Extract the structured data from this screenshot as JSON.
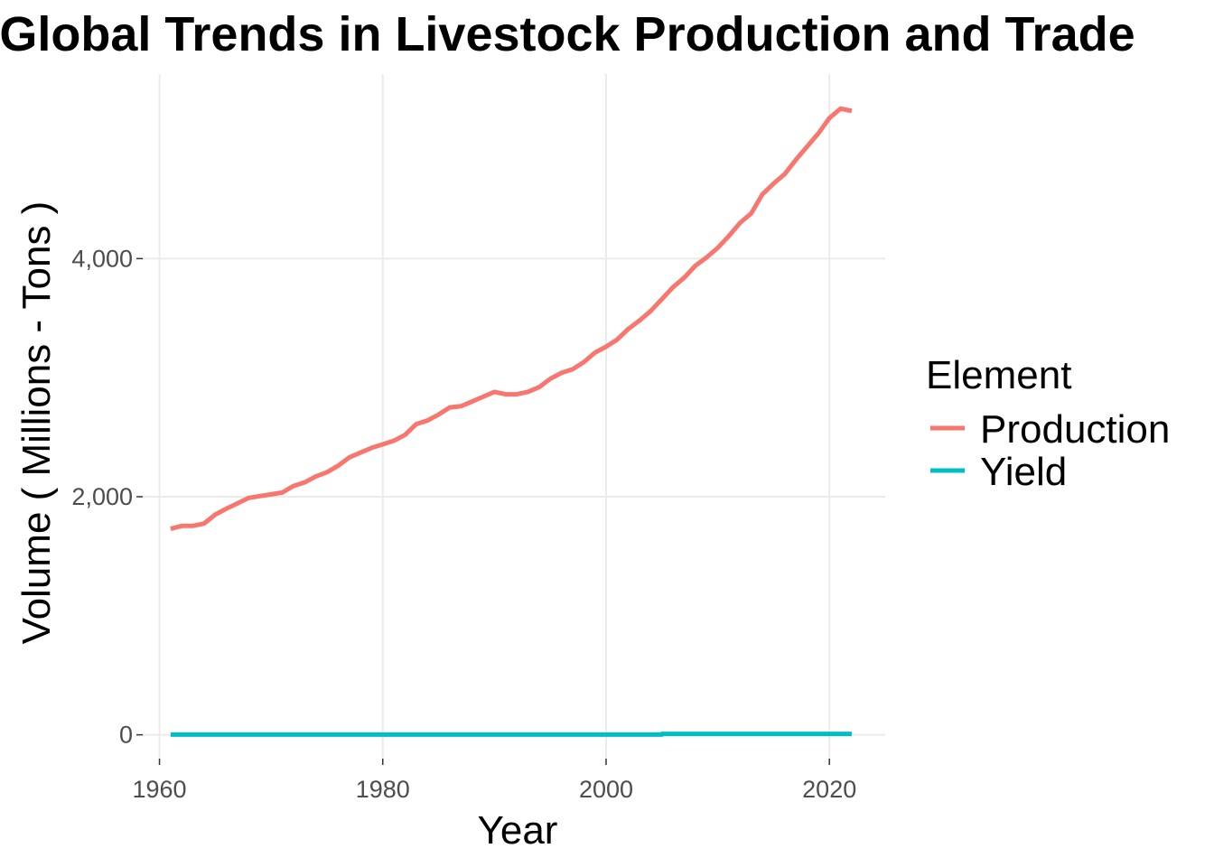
{
  "chart_data": {
    "type": "line",
    "title": "Global Trends in Livestock Production and Trade",
    "xlabel": "Year",
    "ylabel": "Volume ( Millions - Tons )",
    "xlim": [
      1958.5,
      2025
    ],
    "ylim": [
      -200,
      5550
    ],
    "x_ticks": [
      1960,
      1980,
      2000,
      2020
    ],
    "x_tick_labels": [
      "1960",
      "1980",
      "2000",
      "2020"
    ],
    "y_ticks": [
      0,
      2000,
      4000
    ],
    "y_tick_labels": [
      "0",
      "2,000",
      "4,000"
    ],
    "grid": true,
    "legend": {
      "title": "Element",
      "position": "right"
    },
    "series": [
      {
        "name": "Production",
        "color": "#F8766D",
        "x": [
          1961,
          1962,
          1963,
          1964,
          1965,
          1966,
          1967,
          1968,
          1969,
          1970,
          1971,
          1972,
          1973,
          1974,
          1975,
          1976,
          1977,
          1978,
          1979,
          1980,
          1981,
          1982,
          1983,
          1984,
          1985,
          1986,
          1987,
          1988,
          1989,
          1990,
          1991,
          1992,
          1993,
          1994,
          1995,
          1996,
          1997,
          1998,
          1999,
          2000,
          2001,
          2002,
          2003,
          2004,
          2005,
          2006,
          2007,
          2008,
          2009,
          2010,
          2011,
          2012,
          2013,
          2014,
          2015,
          2016,
          2017,
          2018,
          2019,
          2020,
          2021,
          2022
        ],
        "values": [
          1730,
          1755,
          1755,
          1775,
          1850,
          1900,
          1945,
          1990,
          2005,
          2020,
          2035,
          2090,
          2120,
          2170,
          2205,
          2260,
          2330,
          2370,
          2410,
          2440,
          2470,
          2520,
          2610,
          2640,
          2690,
          2750,
          2760,
          2800,
          2840,
          2880,
          2860,
          2860,
          2880,
          2920,
          2990,
          3040,
          3070,
          3130,
          3210,
          3260,
          3320,
          3410,
          3480,
          3560,
          3660,
          3760,
          3840,
          3940,
          4010,
          4090,
          4190,
          4300,
          4380,
          4540,
          4630,
          4710,
          4830,
          4940,
          5050,
          5180,
          5260,
          5240
        ]
      },
      {
        "name": "Yield",
        "color": "#00BFC4",
        "x": [
          1961,
          1970,
          1980,
          1990,
          2000,
          2005,
          2005.01,
          2010,
          2015,
          2020,
          2022
        ],
        "values": [
          2,
          2,
          2,
          2,
          2,
          2,
          8,
          8,
          8,
          8,
          8
        ]
      }
    ]
  }
}
